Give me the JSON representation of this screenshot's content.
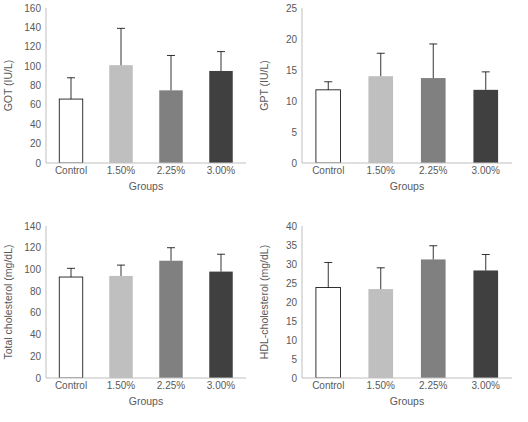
{
  "chart_data": [
    {
      "type": "bar",
      "y_label": "GOT (IU/L)",
      "x_label": "Groups",
      "categories": [
        "Control",
        "1.50%",
        "2.25%",
        "3.00%"
      ],
      "values": [
        66,
        101,
        75,
        95
      ],
      "errors": [
        22,
        38,
        36,
        20
      ],
      "colors": [
        "#ffffff",
        "#bfbfbf",
        "#808080",
        "#404040"
      ],
      "ylim": [
        0,
        160
      ],
      "yticks": [
        0,
        20,
        40,
        60,
        80,
        100,
        120,
        140,
        160
      ],
      "grid": false
    },
    {
      "type": "bar",
      "y_label": "GPT (IU/L)",
      "x_label": "Groups",
      "categories": [
        "Control",
        "1.50%",
        "2.25%",
        "3.00%"
      ],
      "values": [
        11.8,
        14.0,
        13.7,
        11.8
      ],
      "errors": [
        1.3,
        3.7,
        5.5,
        2.9
      ],
      "colors": [
        "#ffffff",
        "#bfbfbf",
        "#808080",
        "#404040"
      ],
      "ylim": [
        0,
        25
      ],
      "yticks": [
        0,
        5,
        10,
        15,
        20,
        25
      ],
      "grid": false
    },
    {
      "type": "bar",
      "y_label": "Total cholesterol (mg/dL)",
      "x_label": "Groups",
      "categories": [
        "Control",
        "1.50%",
        "2.25%",
        "3.00%"
      ],
      "values": [
        93,
        94,
        108,
        98
      ],
      "errors": [
        8,
        10,
        12,
        16
      ],
      "colors": [
        "#ffffff",
        "#bfbfbf",
        "#808080",
        "#404040"
      ],
      "ylim": [
        0,
        140
      ],
      "yticks": [
        0,
        20,
        40,
        60,
        80,
        100,
        120,
        140
      ],
      "grid": false
    },
    {
      "type": "bar",
      "y_label": "HDL-cholesterol (mg/dL)",
      "x_label": "Groups",
      "categories": [
        "Control",
        "1.50%",
        "2.25%",
        "3.00%"
      ],
      "values": [
        23.8,
        23.4,
        31.2,
        28.3
      ],
      "errors": [
        6.6,
        5.6,
        3.6,
        4.2
      ],
      "colors": [
        "#ffffff",
        "#bfbfbf",
        "#808080",
        "#404040"
      ],
      "ylim": [
        0,
        40
      ],
      "yticks": [
        0,
        5,
        10,
        15,
        20,
        25,
        30,
        35,
        40
      ],
      "grid": false
    }
  ]
}
